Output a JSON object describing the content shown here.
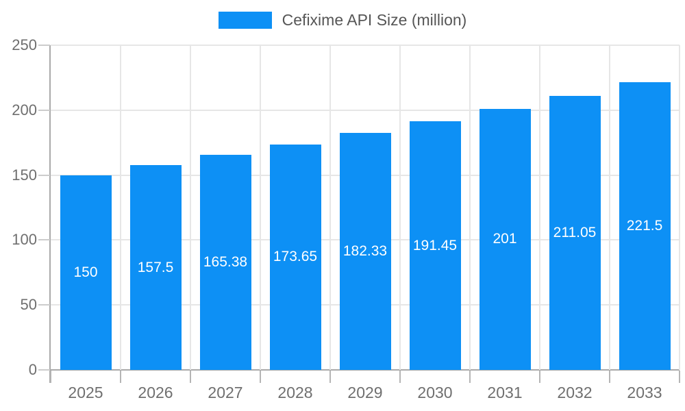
{
  "chart_data": {
    "type": "bar",
    "title": "Cefixime API Size (million)",
    "legend": {
      "label": "Cefixime API Size (million)",
      "position": "top",
      "swatch_color": "#0D90F5"
    },
    "categories": [
      "2025",
      "2026",
      "2027",
      "2028",
      "2029",
      "2030",
      "2031",
      "2032",
      "2033"
    ],
    "values": [
      150,
      157.5,
      165.38,
      173.65,
      182.33,
      191.45,
      201,
      211.05,
      221.5
    ],
    "value_labels": [
      "150",
      "157.5",
      "165.38",
      "173.65",
      "182.33",
      "191.45",
      "201",
      "211.05",
      "221.5"
    ],
    "xlabel": "",
    "ylabel": "",
    "ylim": [
      0,
      250
    ],
    "yticks": [
      0,
      50,
      100,
      150,
      200,
      250
    ],
    "grid": true,
    "bar_color": "#0D90F5",
    "value_label_color": "#FFFFFF",
    "axis_text_color": "#6F6F6F",
    "gridline_color": "#E6E6E6",
    "axis_line_color": "#A9A9A9"
  }
}
